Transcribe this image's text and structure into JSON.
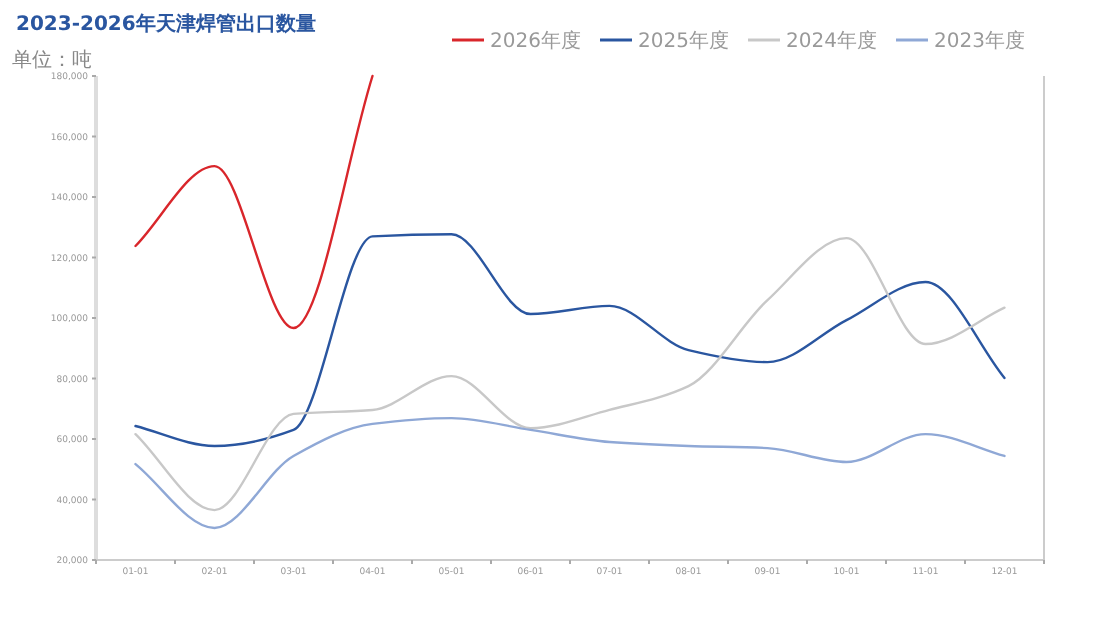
{
  "chart_data": {
    "type": "line",
    "title": "2023-2026年天津焊管出口数量",
    "ylabel": "单位：吨",
    "categories": [
      "01-01",
      "02-01",
      "03-01",
      "04-01",
      "05-01",
      "06-01",
      "07-01",
      "08-01",
      "09-01",
      "10-01",
      "11-01",
      "12-01"
    ],
    "series": [
      {
        "name": "2026年度",
        "color": "#d9262b",
        "values": [
          123800,
          150200,
          96700,
          180000,
          null,
          null,
          null,
          null,
          null,
          null,
          null,
          null
        ]
      },
      {
        "name": "2025年度",
        "color": "#2a56a0",
        "values": [
          64300,
          57700,
          63000,
          127000,
          127700,
          101300,
          104000,
          89400,
          85400,
          99300,
          111900,
          80200
        ]
      },
      {
        "name": "2024年度",
        "color": "#c8c8c8",
        "values": [
          61600,
          36500,
          68300,
          69600,
          80800,
          63600,
          69600,
          77500,
          105900,
          126400,
          91400,
          103400
        ]
      },
      {
        "name": "2023年度",
        "color": "#8fa8d6",
        "values": [
          51700,
          30600,
          54400,
          65000,
          66900,
          63000,
          59000,
          57700,
          57000,
          52400,
          61600,
          54400
        ]
      }
    ],
    "ylim": [
      20000,
      180000
    ],
    "yticks": [
      {
        "value": 20000,
        "label": "20,000"
      },
      {
        "value": 40000,
        "label": "40,000"
      },
      {
        "value": 60000,
        "label": "60,000"
      },
      {
        "value": 80000,
        "label": "80,000"
      },
      {
        "value": 100000,
        "label": "100,000"
      },
      {
        "value": 120000,
        "label": "120,000"
      },
      {
        "value": 140000,
        "label": "140,000"
      },
      {
        "value": 160000,
        "label": "160,000"
      },
      {
        "value": 180000,
        "label": "180,000"
      }
    ],
    "legend": "top right",
    "grid": false,
    "marker": "none",
    "line_style": "solid"
  }
}
